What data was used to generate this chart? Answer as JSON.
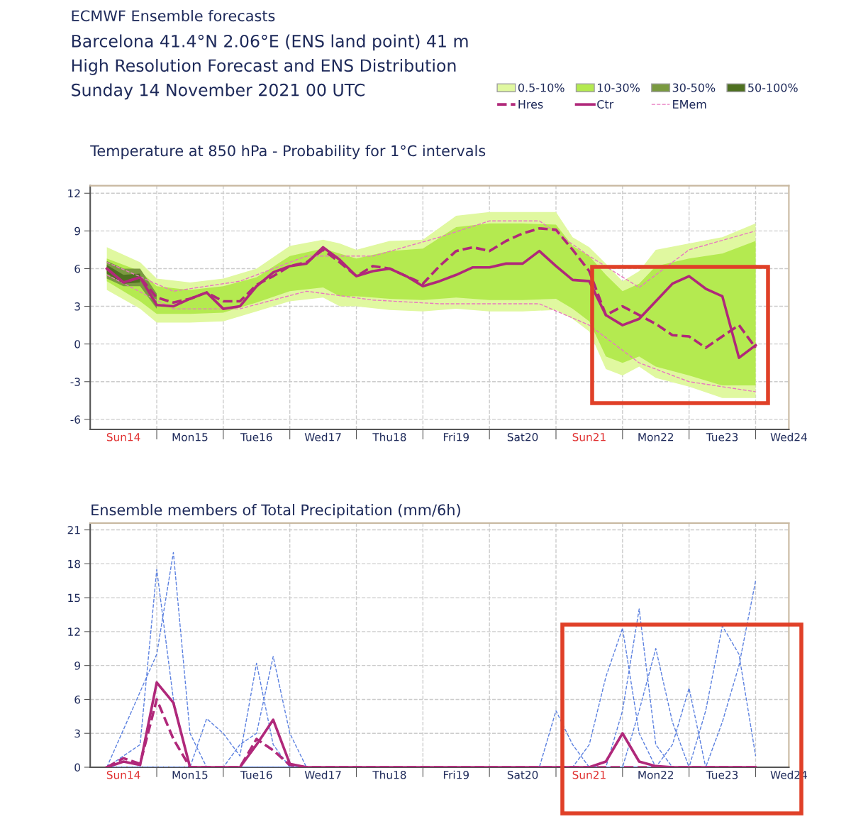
{
  "chart_data": [
    {
      "type": "line",
      "title": "Temperature at 850 hPa - Probability for 1°C intervals",
      "annotations": [
        "ECMWF Ensemble forecasts",
        "Barcelona 41.4°N 2.06°E (ENS land point) 41 m",
        "High Resolution Forecast and ENS Distribution",
        "Sunday 14 November 2021 00 UTC"
      ],
      "xlim": [
        "2021-11-14T00:00",
        "2021-11-24T12:00"
      ],
      "ylim": [
        -6.8,
        12.6
      ],
      "yticks": [
        -6,
        -3,
        0,
        3,
        6,
        9,
        12
      ],
      "xticks": [
        {
          "value": "2021-11-14T12:00",
          "label": "Sun14"
        },
        {
          "value": "2021-11-15T12:00",
          "label": "Mon15"
        },
        {
          "value": "2021-11-16T12:00",
          "label": "Tue16"
        },
        {
          "value": "2021-11-17T12:00",
          "label": "Wed17"
        },
        {
          "value": "2021-11-18T12:00",
          "label": "Thu18"
        },
        {
          "value": "2021-11-19T12:00",
          "label": "Fri19"
        },
        {
          "value": "2021-11-20T12:00",
          "label": "Sat20"
        },
        {
          "value": "2021-11-21T12:00",
          "label": "Sun21"
        },
        {
          "value": "2021-11-22T12:00",
          "label": "Mon22"
        },
        {
          "value": "2021-11-23T12:00",
          "label": "Tue23"
        },
        {
          "value": "2021-11-24T12:00",
          "label": "Wed24"
        },
        {
          "value": "2021-11-15T00:00",
          "label": null
        },
        {
          "value": "2021-11-16T00:00",
          "label": null
        },
        {
          "value": "2021-11-17T00:00",
          "label": null
        },
        {
          "value": "2021-11-18T00:00",
          "label": null
        },
        {
          "value": "2021-11-19T00:00",
          "label": null
        },
        {
          "value": "2021-11-20T00:00",
          "label": null
        },
        {
          "value": "2021-11-21T00:00",
          "label": null
        },
        {
          "value": "2021-11-22T00:00",
          "label": null
        },
        {
          "value": "2021-11-23T00:00",
          "label": null
        },
        {
          "value": "2021-11-24T00:00",
          "label": null
        }
      ],
      "grid": true,
      "legend": "top right",
      "x": [
        "2021-11-14T06:00",
        "2021-11-14T12:00",
        "2021-11-14T18:00",
        "2021-11-15T00:00",
        "2021-11-15T06:00",
        "2021-11-15T12:00",
        "2021-11-15T18:00",
        "2021-11-16T00:00",
        "2021-11-16T06:00",
        "2021-11-16T12:00",
        "2021-11-16T18:00",
        "2021-11-17T00:00",
        "2021-11-17T06:00",
        "2021-11-17T12:00",
        "2021-11-17T18:00",
        "2021-11-18T00:00",
        "2021-11-18T06:00",
        "2021-11-18T12:00",
        "2021-11-18T18:00",
        "2021-11-19T00:00",
        "2021-11-19T06:00",
        "2021-11-19T12:00",
        "2021-11-19T18:00",
        "2021-11-20T00:00",
        "2021-11-20T06:00",
        "2021-11-20T12:00",
        "2021-11-20T18:00",
        "2021-11-21T00:00",
        "2021-11-21T06:00",
        "2021-11-21T12:00",
        "2021-11-21T18:00",
        "2021-11-22T00:00",
        "2021-11-22T06:00",
        "2021-11-22T12:00",
        "2021-11-22T18:00",
        "2021-11-23T00:00",
        "2021-11-23T06:00",
        "2021-11-23T12:00",
        "2021-11-23T18:00",
        "2021-11-24T00:00"
      ],
      "series": [
        {
          "name": "0.5-10%",
          "color": "#e0f8a0",
          "x": [
            "2021-11-14T06:00",
            "2021-11-14T18:00",
            "2021-11-15T00:00",
            "2021-11-15T12:00",
            "2021-11-16T00:00",
            "2021-11-16T12:00",
            "2021-11-17T00:00",
            "2021-11-17T12:00",
            "2021-11-17T18:00",
            "2021-11-18T00:00",
            "2021-11-18T12:00",
            "2021-11-19T00:00",
            "2021-11-19T12:00",
            "2021-11-20T00:00",
            "2021-11-20T12:00",
            "2021-11-21T00:00",
            "2021-11-21T06:00",
            "2021-11-21T12:00",
            "2021-11-21T18:00",
            "2021-11-22T00:00",
            "2021-11-22T06:00",
            "2021-11-22T12:00",
            "2021-11-23T00:00",
            "2021-11-23T12:00",
            "2021-11-24T00:00"
          ],
          "values": [
            null,
            null,
            null,
            null,
            null,
            null,
            null,
            null,
            null,
            null,
            null,
            null,
            null,
            null,
            null,
            null,
            null,
            null,
            null,
            null,
            null,
            null,
            null,
            null,
            null
          ],
          "upper": [
            7.7,
            6.5,
            5.2,
            4.9,
            5.2,
            6.0,
            7.8,
            8.3,
            8.0,
            7.5,
            8.2,
            8.3,
            10.2,
            10.5,
            10.5,
            10.5,
            8.5,
            7.7,
            6.4,
            5.0,
            5.8,
            7.5,
            8.0,
            8.5,
            9.6
          ],
          "lower": [
            4.3,
            2.8,
            1.7,
            1.7,
            1.8,
            2.6,
            3.4,
            3.7,
            3.0,
            3.0,
            2.7,
            2.6,
            2.8,
            2.6,
            2.6,
            2.7,
            2.0,
            1.0,
            -2.0,
            -2.5,
            -1.8,
            -2.7,
            -3.4,
            -4.3,
            -4.3
          ]
        },
        {
          "name": "10-30%",
          "color": "#b4ea50",
          "x": [
            "2021-11-14T06:00",
            "2021-11-14T18:00",
            "2021-11-15T00:00",
            "2021-11-15T12:00",
            "2021-11-16T00:00",
            "2021-11-16T12:00",
            "2021-11-17T00:00",
            "2021-11-17T12:00",
            "2021-11-17T18:00",
            "2021-11-18T00:00",
            "2021-11-18T12:00",
            "2021-11-19T00:00",
            "2021-11-19T12:00",
            "2021-11-20T00:00",
            "2021-11-20T12:00",
            "2021-11-21T00:00",
            "2021-11-21T06:00",
            "2021-11-21T12:00",
            "2021-11-21T18:00",
            "2021-11-22T00:00",
            "2021-11-22T06:00",
            "2021-11-22T12:00",
            "2021-11-23T00:00",
            "2021-11-23T12:00",
            "2021-11-24T00:00"
          ],
          "values": [
            null,
            null,
            null,
            null,
            null,
            null,
            null,
            null,
            null,
            null,
            null,
            null,
            null,
            null,
            null,
            null,
            null,
            null,
            null,
            null,
            null,
            null,
            null,
            null,
            null
          ],
          "upper": [
            6.8,
            5.8,
            4.6,
            4.3,
            4.6,
            5.3,
            7.0,
            7.6,
            7.2,
            6.8,
            7.4,
            7.6,
            9.3,
            9.6,
            9.6,
            9.5,
            7.8,
            7.0,
            5.5,
            4.2,
            4.8,
            6.2,
            6.8,
            7.2,
            8.2
          ],
          "lower": [
            5.0,
            3.4,
            2.4,
            2.4,
            2.5,
            3.3,
            4.2,
            4.5,
            3.8,
            3.8,
            3.6,
            3.5,
            3.7,
            3.5,
            3.5,
            3.6,
            2.8,
            1.8,
            -1.0,
            -1.5,
            -1.0,
            -1.8,
            -2.5,
            -3.3,
            -3.3
          ]
        },
        {
          "name": "30-50%",
          "color": "#7a9a40",
          "x": [
            "2021-11-14T06:00",
            "2021-11-14T12:00",
            "2021-11-14T18:00",
            "2021-11-15T00:00"
          ],
          "values": [
            null,
            null,
            null,
            null
          ],
          "upper": [
            6.6,
            6.0,
            6.0,
            4.0
          ],
          "lower": [
            5.2,
            4.6,
            4.6,
            2.8
          ]
        },
        {
          "name": "50-100%",
          "color": "#4e7020",
          "x": [
            "2021-11-14T06:00",
            "2021-11-14T12:00",
            "2021-11-14T18:00"
          ],
          "values": [
            null,
            null,
            null
          ],
          "upper": [
            6.3,
            5.5,
            5.6
          ],
          "lower": [
            5.6,
            4.8,
            4.9
          ]
        },
        {
          "name": "Hres",
          "color": "#b0287a",
          "line_style": "dashed",
          "values": [
            6.0,
            4.9,
            5.3,
            3.7,
            3.3,
            3.6,
            4.1,
            3.4,
            3.4,
            4.7,
            5.4,
            6.2,
            6.5,
            7.5,
            6.5,
            5.4,
            6.2,
            6.0,
            5.4,
            4.8,
            6.2,
            7.4,
            7.7,
            7.4,
            8.2,
            8.8,
            9.2,
            9.1,
            7.5,
            5.8,
            2.3,
            3.0,
            2.3,
            1.6,
            0.7,
            0.6,
            -0.3,
            0.6,
            1.5,
            -0.3
          ]
        },
        {
          "name": "Ctr",
          "color": "#b0287a",
          "line_style": "solid",
          "values": [
            6.0,
            4.9,
            5.3,
            3.1,
            3.0,
            3.6,
            4.1,
            2.8,
            3.0,
            4.6,
            5.7,
            6.2,
            6.4,
            7.7,
            6.7,
            5.4,
            5.8,
            6.0,
            5.4,
            4.6,
            5.0,
            5.5,
            6.1,
            6.1,
            6.4,
            6.4,
            7.4,
            6.2,
            5.1,
            5.0,
            2.3,
            1.5,
            2.0,
            3.4,
            4.8,
            5.4,
            4.4,
            3.8,
            -1.1,
            -0.1
          ]
        },
        {
          "name": "EMem",
          "color": "#e878c0",
          "line_style": "dashed",
          "x": [
            "2021-11-14T06:00",
            "2021-11-15T06:00",
            "2021-11-16T06:00",
            "2021-11-17T06:00",
            "2021-11-18T06:00",
            "2021-11-19T06:00",
            "2021-11-20T00:00",
            "2021-11-20T18:00",
            "2021-11-21T12:00",
            "2021-11-22T06:00",
            "2021-11-23T00:00",
            "2021-11-24T00:00"
          ],
          "values": [
            6.5,
            4.2,
            5.0,
            7.0,
            7.0,
            8.5,
            9.8,
            9.8,
            7.0,
            4.5,
            7.5,
            9.0
          ]
        },
        {
          "color": "#e878c0",
          "line_style": "dashed",
          "x": [
            "2021-11-14T06:00",
            "2021-11-15T06:00",
            "2021-11-16T06:00",
            "2021-11-17T06:00",
            "2021-11-18T06:00",
            "2021-11-19T06:00",
            "2021-11-20T00:00",
            "2021-11-20T18:00",
            "2021-11-21T12:00",
            "2021-11-22T06:00",
            "2021-11-23T00:00",
            "2021-11-24T00:00"
          ],
          "values": [
            5.5,
            2.8,
            2.8,
            4.2,
            3.5,
            3.2,
            3.2,
            3.2,
            1.5,
            -1.5,
            -3.0,
            -3.8
          ]
        }
      ]
    },
    {
      "type": "line",
      "title": "Ensemble members of Total Precipitation (mm/6h)",
      "xlim": [
        "2021-11-14T00:00",
        "2021-11-24T12:00"
      ],
      "ylim": [
        0,
        21.6
      ],
      "yticks": [
        0,
        3,
        6,
        9,
        12,
        15,
        18,
        21
      ],
      "xticks": [
        {
          "value": "2021-11-14T12:00",
          "label": "Sun14"
        },
        {
          "value": "2021-11-15T12:00",
          "label": "Mon15"
        },
        {
          "value": "2021-11-16T12:00",
          "label": "Tue16"
        },
        {
          "value": "2021-11-17T12:00",
          "label": "Wed17"
        },
        {
          "value": "2021-11-18T12:00",
          "label": "Thu18"
        },
        {
          "value": "2021-11-19T12:00",
          "label": "Fri19"
        },
        {
          "value": "2021-11-20T12:00",
          "label": "Sat20"
        },
        {
          "value": "2021-11-21T12:00",
          "label": "Sun21"
        },
        {
          "value": "2021-11-22T12:00",
          "label": "Mon22"
        },
        {
          "value": "2021-11-23T12:00",
          "label": "Tue23"
        },
        {
          "value": "2021-11-24T12:00",
          "label": "Wed24"
        },
        {
          "value": "2021-11-15T00:00",
          "label": null
        },
        {
          "value": "2021-11-16T00:00",
          "label": null
        },
        {
          "value": "2021-11-17T00:00",
          "label": null
        },
        {
          "value": "2021-11-18T00:00",
          "label": null
        },
        {
          "value": "2021-11-19T00:00",
          "label": null
        },
        {
          "value": "2021-11-20T00:00",
          "label": null
        },
        {
          "value": "2021-11-21T00:00",
          "label": null
        },
        {
          "value": "2021-11-22T00:00",
          "label": null
        },
        {
          "value": "2021-11-23T00:00",
          "label": null
        },
        {
          "value": "2021-11-24T00:00",
          "label": null
        }
      ],
      "grid": true,
      "x": [
        "2021-11-14T06:00",
        "2021-11-14T12:00",
        "2021-11-14T18:00",
        "2021-11-15T00:00",
        "2021-11-15T06:00",
        "2021-11-15T12:00",
        "2021-11-15T18:00",
        "2021-11-16T00:00",
        "2021-11-16T06:00",
        "2021-11-16T12:00",
        "2021-11-16T18:00",
        "2021-11-17T00:00",
        "2021-11-17T06:00",
        "2021-11-17T12:00",
        "2021-11-17T18:00",
        "2021-11-18T00:00",
        "2021-11-18T06:00",
        "2021-11-18T12:00",
        "2021-11-18T18:00",
        "2021-11-19T00:00",
        "2021-11-19T06:00",
        "2021-11-19T12:00",
        "2021-11-19T18:00",
        "2021-11-20T00:00",
        "2021-11-20T06:00",
        "2021-11-20T12:00",
        "2021-11-20T18:00",
        "2021-11-21T00:00",
        "2021-11-21T06:00",
        "2021-11-21T12:00",
        "2021-11-21T18:00",
        "2021-11-22T00:00",
        "2021-11-22T06:00",
        "2021-11-22T12:00",
        "2021-11-22T18:00",
        "2021-11-23T00:00",
        "2021-11-23T06:00",
        "2021-11-23T12:00",
        "2021-11-23T18:00",
        "2021-11-24T00:00"
      ],
      "series": [
        {
          "color": "#5b80e0",
          "line_style": "dashed",
          "x": [
            "2021-11-14T06:00",
            "2021-11-14T18:00",
            "2021-11-15T00:00",
            "2021-11-15T06:00",
            "2021-11-15T12:00",
            "2021-11-24T00:00"
          ],
          "values": [
            0,
            2,
            17.5,
            6,
            0,
            0
          ]
        },
        {
          "color": "#5b80e0",
          "line_style": "dashed",
          "x": [
            "2021-11-14T06:00",
            "2021-11-15T00:00",
            "2021-11-15T06:00",
            "2021-11-15T12:00",
            "2021-11-15T18:00",
            "2021-11-24T00:00"
          ],
          "values": [
            0,
            10,
            19,
            3,
            0,
            0
          ]
        },
        {
          "color": "#5b80e0",
          "line_style": "dashed",
          "x": [
            "2021-11-14T06:00",
            "2021-11-15T12:00",
            "2021-11-15T18:00",
            "2021-11-16T00:00",
            "2021-11-16T06:00",
            "2021-11-16T12:00",
            "2021-11-16T18:00",
            "2021-11-17T00:00",
            "2021-11-24T00:00"
          ],
          "values": [
            0,
            0,
            4.3,
            3,
            1,
            9.2,
            2,
            0,
            0
          ]
        },
        {
          "color": "#5b80e0",
          "line_style": "dashed",
          "x": [
            "2021-11-14T06:00",
            "2021-11-16T00:00",
            "2021-11-16T06:00",
            "2021-11-16T12:00",
            "2021-11-16T18:00",
            "2021-11-17T00:00",
            "2021-11-17T06:00",
            "2021-11-24T00:00"
          ],
          "values": [
            0,
            0,
            2,
            3,
            9.8,
            3,
            0,
            0
          ]
        },
        {
          "color": "#5b80e0",
          "line_style": "dashed",
          "x": [
            "2021-11-14T06:00",
            "2021-11-20T18:00",
            "2021-11-21T00:00",
            "2021-11-21T06:00",
            "2021-11-21T12:00",
            "2021-11-24T00:00"
          ],
          "values": [
            0,
            0,
            5,
            2,
            0,
            0
          ]
        },
        {
          "color": "#5b80e0",
          "line_style": "dashed",
          "x": [
            "2021-11-14T06:00",
            "2021-11-21T06:00",
            "2021-11-21T12:00",
            "2021-11-21T18:00",
            "2021-11-22T00:00",
            "2021-11-22T06:00",
            "2021-11-22T12:00",
            "2021-11-24T00:00"
          ],
          "values": [
            0,
            0,
            2,
            8,
            12.3,
            3,
            0,
            0
          ]
        },
        {
          "color": "#5b80e0",
          "line_style": "dashed",
          "x": [
            "2021-11-14T06:00",
            "2021-11-21T18:00",
            "2021-11-22T00:00",
            "2021-11-22T06:00",
            "2021-11-22T12:00",
            "2021-11-22T18:00",
            "2021-11-24T00:00"
          ],
          "values": [
            0,
            0,
            5,
            14,
            2,
            0,
            0
          ]
        },
        {
          "color": "#5b80e0",
          "line_style": "dashed",
          "x": [
            "2021-11-14T06:00",
            "2021-11-22T00:00",
            "2021-11-22T06:00",
            "2021-11-22T12:00",
            "2021-11-22T18:00",
            "2021-11-23T00:00",
            "2021-11-24T00:00"
          ],
          "values": [
            0,
            0,
            5,
            10.5,
            4,
            0,
            0
          ]
        },
        {
          "color": "#5b80e0",
          "line_style": "dashed",
          "x": [
            "2021-11-14T06:00",
            "2021-11-22T12:00",
            "2021-11-22T18:00",
            "2021-11-23T00:00",
            "2021-11-23T06:00",
            "2021-11-24T00:00"
          ],
          "values": [
            0,
            0,
            2,
            7,
            0,
            0
          ]
        },
        {
          "color": "#5b80e0",
          "line_style": "dashed",
          "x": [
            "2021-11-14T06:00",
            "2021-11-23T00:00",
            "2021-11-23T06:00",
            "2021-11-23T12:00",
            "2021-11-23T18:00",
            "2021-11-24T00:00"
          ],
          "values": [
            0,
            0,
            5,
            12.5,
            10,
            1
          ]
        },
        {
          "color": "#5b80e0",
          "line_style": "dashed",
          "x": [
            "2021-11-14T06:00",
            "2021-11-23T06:00",
            "2021-11-23T12:00",
            "2021-11-23T18:00",
            "2021-11-24T00:00"
          ],
          "values": [
            0,
            0,
            4,
            9,
            16.5
          ]
        },
        {
          "color": "#b0287a",
          "line_style": "dashed",
          "values": [
            0,
            0.8,
            0.3,
            6.0,
            2.5,
            0,
            0,
            0,
            0,
            2.5,
            1.5,
            0.2,
            0,
            0,
            0,
            0,
            0,
            0,
            0,
            0,
            0,
            0,
            0,
            0,
            0,
            0,
            0,
            0,
            0,
            0,
            0,
            0,
            0,
            0,
            0,
            0,
            0,
            0,
            0,
            0
          ]
        },
        {
          "color": "#b0287a",
          "line_style": "solid",
          "values": [
            0,
            0.5,
            0.2,
            7.5,
            5.7,
            0,
            0,
            0,
            0,
            2.0,
            4.2,
            0.3,
            0,
            0,
            0,
            0,
            0,
            0,
            0,
            0,
            0,
            0,
            0,
            0,
            0,
            0,
            0,
            0,
            0,
            0,
            0.5,
            3.0,
            0.5,
            0.1,
            0,
            0,
            0,
            0,
            0,
            0
          ]
        }
      ]
    }
  ]
}
